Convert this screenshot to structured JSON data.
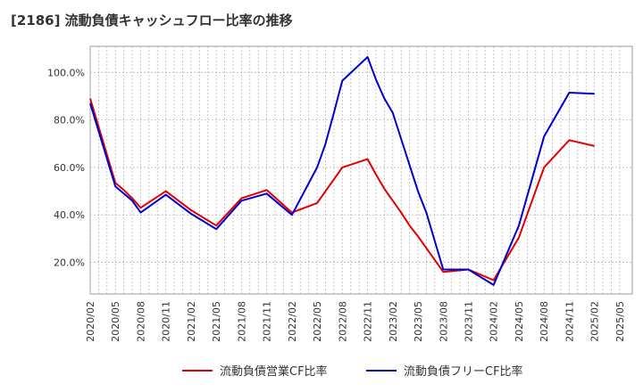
{
  "chart_data": {
    "type": "line",
    "title": "[2186]  流動負債キャッシュフロー比率の推移",
    "x": [
      "2020/02",
      "2020/05",
      "2020/08",
      "2020/11",
      "2021/02",
      "2021/05",
      "2021/08",
      "2021/11",
      "2022/02",
      "2022/05",
      "2022/08",
      "2022/11",
      "2023/02",
      "2023/05",
      "2023/08",
      "2023/11",
      "2024/02",
      "2024/05",
      "2024/08",
      "2024/11",
      "2025/02",
      "2025/05"
    ],
    "xlim": [
      "2020/02",
      "2025/05"
    ],
    "ylim": [
      6.7,
      111
    ],
    "yticks": [
      20,
      40,
      60,
      80,
      100
    ],
    "ytick_labels": [
      "20.0%",
      "40.0%",
      "60.0%",
      "80.0%",
      "100.0%"
    ],
    "grid": true,
    "legend_position": "bottom",
    "series": [
      {
        "name": "流動負債営業CF比率",
        "color": "#e00000",
        "points": [
          [
            "2020/02",
            89.0
          ],
          [
            "2020/05",
            53.5
          ],
          [
            "2020/06",
            50.5
          ],
          [
            "2020/07",
            47.0
          ],
          [
            "2020/08",
            43.0
          ],
          [
            "2020/11",
            50.0
          ],
          [
            "2021/02",
            42.0
          ],
          [
            "2021/05",
            35.5
          ],
          [
            "2021/08",
            47.0
          ],
          [
            "2021/11",
            50.5
          ],
          [
            "2022/02",
            41.0
          ],
          [
            "2022/05",
            45.0
          ],
          [
            "2022/06",
            50.0
          ],
          [
            "2022/07",
            55.0
          ],
          [
            "2022/08",
            60.0
          ],
          [
            "2022/11",
            63.5
          ],
          [
            "2022/12",
            57.0
          ],
          [
            "2023/01",
            51.0
          ],
          [
            "2023/02",
            46.0
          ],
          [
            "2023/03",
            41.0
          ],
          [
            "2023/04",
            35.5
          ],
          [
            "2023/05",
            31.0
          ],
          [
            "2023/08",
            16.0
          ],
          [
            "2023/11",
            17.0
          ],
          [
            "2024/02",
            12.5
          ],
          [
            "2024/05",
            30.5
          ],
          [
            "2024/08",
            60.0
          ],
          [
            "2024/11",
            71.5
          ],
          [
            "2025/02",
            69.0
          ]
        ]
      },
      {
        "name": "流動負債フリーCF比率",
        "color": "#0000d0",
        "points": [
          [
            "2020/02",
            87.0
          ],
          [
            "2020/05",
            52.0
          ],
          [
            "2020/06",
            49.0
          ],
          [
            "2020/07",
            46.0
          ],
          [
            "2020/08",
            41.0
          ],
          [
            "2020/11",
            48.5
          ],
          [
            "2021/02",
            40.5
          ],
          [
            "2021/05",
            34.0
          ],
          [
            "2021/08",
            46.0
          ],
          [
            "2021/11",
            49.0
          ],
          [
            "2022/02",
            40.0
          ],
          [
            "2022/05",
            60.0
          ],
          [
            "2022/06",
            70.0
          ],
          [
            "2022/07",
            83.0
          ],
          [
            "2022/08",
            96.5
          ],
          [
            "2022/11",
            106.5
          ],
          [
            "2022/12",
            97.0
          ],
          [
            "2023/01",
            89.0
          ],
          [
            "2023/02",
            83.0
          ],
          [
            "2023/03",
            72.0
          ],
          [
            "2023/04",
            61.0
          ],
          [
            "2023/05",
            50.0
          ],
          [
            "2023/06",
            41.0
          ],
          [
            "2023/08",
            17.0
          ],
          [
            "2023/11",
            17.0
          ],
          [
            "2024/02",
            10.5
          ],
          [
            "2024/05",
            35.5
          ],
          [
            "2024/08",
            73.0
          ],
          [
            "2024/11",
            91.5
          ],
          [
            "2025/02",
            91.0
          ]
        ]
      }
    ]
  }
}
